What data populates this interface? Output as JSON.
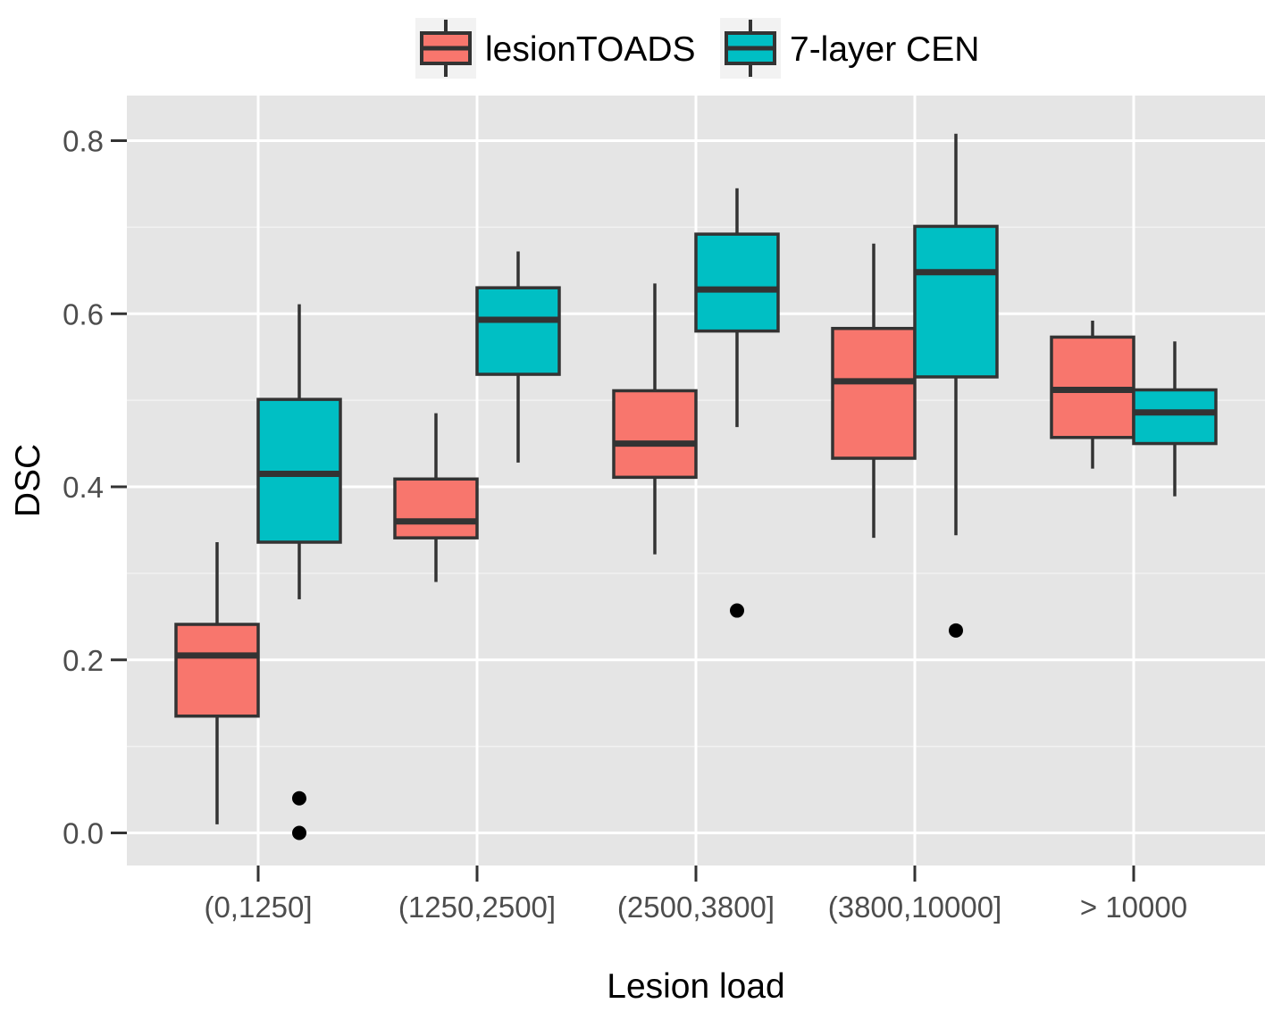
{
  "chart_data": {
    "type": "boxplot",
    "xlabel": "Lesion load",
    "ylabel": "DSC",
    "categories": [
      "(0,1250]",
      "(1250,2500]",
      "(2500,3800]",
      "(3800,10000]",
      "> 10000"
    ],
    "y_ticks": [
      "0.0",
      "0.2",
      "0.4",
      "0.6",
      "0.8"
    ],
    "ylim": [
      -0.04,
      0.85
    ],
    "grid": true,
    "legend_position": "top",
    "series": [
      {
        "name": "lesionTOADS",
        "color": "#F8766D",
        "boxes": [
          {
            "whisker_low": 0.01,
            "q1": 0.135,
            "median": 0.205,
            "q3": 0.241,
            "whisker_high": 0.336,
            "outliers": []
          },
          {
            "whisker_low": 0.29,
            "q1": 0.341,
            "median": 0.36,
            "q3": 0.409,
            "whisker_high": 0.485,
            "outliers": []
          },
          {
            "whisker_low": 0.322,
            "q1": 0.411,
            "median": 0.45,
            "q3": 0.511,
            "whisker_high": 0.635,
            "outliers": []
          },
          {
            "whisker_low": 0.341,
            "q1": 0.433,
            "median": 0.522,
            "q3": 0.583,
            "whisker_high": 0.681,
            "outliers": []
          },
          {
            "whisker_low": 0.421,
            "q1": 0.457,
            "median": 0.512,
            "q3": 0.573,
            "whisker_high": 0.592,
            "outliers": []
          }
        ]
      },
      {
        "name": "7-layer CEN",
        "color": "#00BFC4",
        "boxes": [
          {
            "whisker_low": 0.27,
            "q1": 0.336,
            "median": 0.415,
            "q3": 0.501,
            "whisker_high": 0.611,
            "outliers": [
              0.0,
              0.04
            ]
          },
          {
            "whisker_low": 0.428,
            "q1": 0.53,
            "median": 0.593,
            "q3": 0.63,
            "whisker_high": 0.672,
            "outliers": []
          },
          {
            "whisker_low": 0.469,
            "q1": 0.58,
            "median": 0.628,
            "q3": 0.692,
            "whisker_high": 0.745,
            "outliers": [
              0.257
            ]
          },
          {
            "whisker_low": 0.344,
            "q1": 0.527,
            "median": 0.648,
            "q3": 0.701,
            "whisker_high": 0.808,
            "outliers": [
              0.234
            ]
          },
          {
            "whisker_low": 0.389,
            "q1": 0.45,
            "median": 0.486,
            "q3": 0.512,
            "whisker_high": 0.568,
            "outliers": []
          }
        ]
      }
    ]
  }
}
